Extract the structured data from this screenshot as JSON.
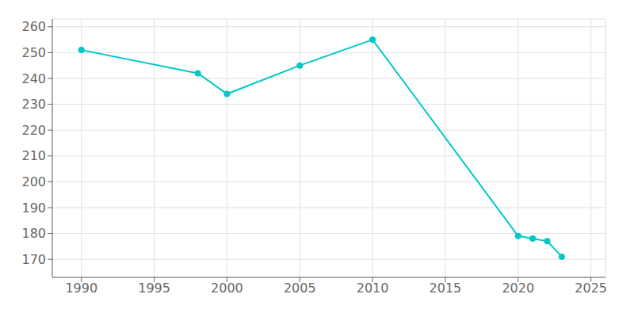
{
  "chart_data": {
    "type": "line",
    "x": [
      1990,
      1998,
      2000,
      2005,
      2010,
      2020,
      2021,
      2022,
      2023
    ],
    "values": [
      251,
      242,
      234,
      245,
      255,
      179,
      178,
      177,
      171
    ],
    "color": "#00C8C8",
    "marker": "circle",
    "xlim": [
      1988,
      2026
    ],
    "ylim": [
      163,
      263
    ],
    "xticks": [
      1990,
      1995,
      2000,
      2005,
      2010,
      2015,
      2020,
      2025
    ],
    "yticks": [
      170,
      180,
      190,
      200,
      210,
      220,
      230,
      240,
      250,
      260
    ],
    "grid": true
  }
}
